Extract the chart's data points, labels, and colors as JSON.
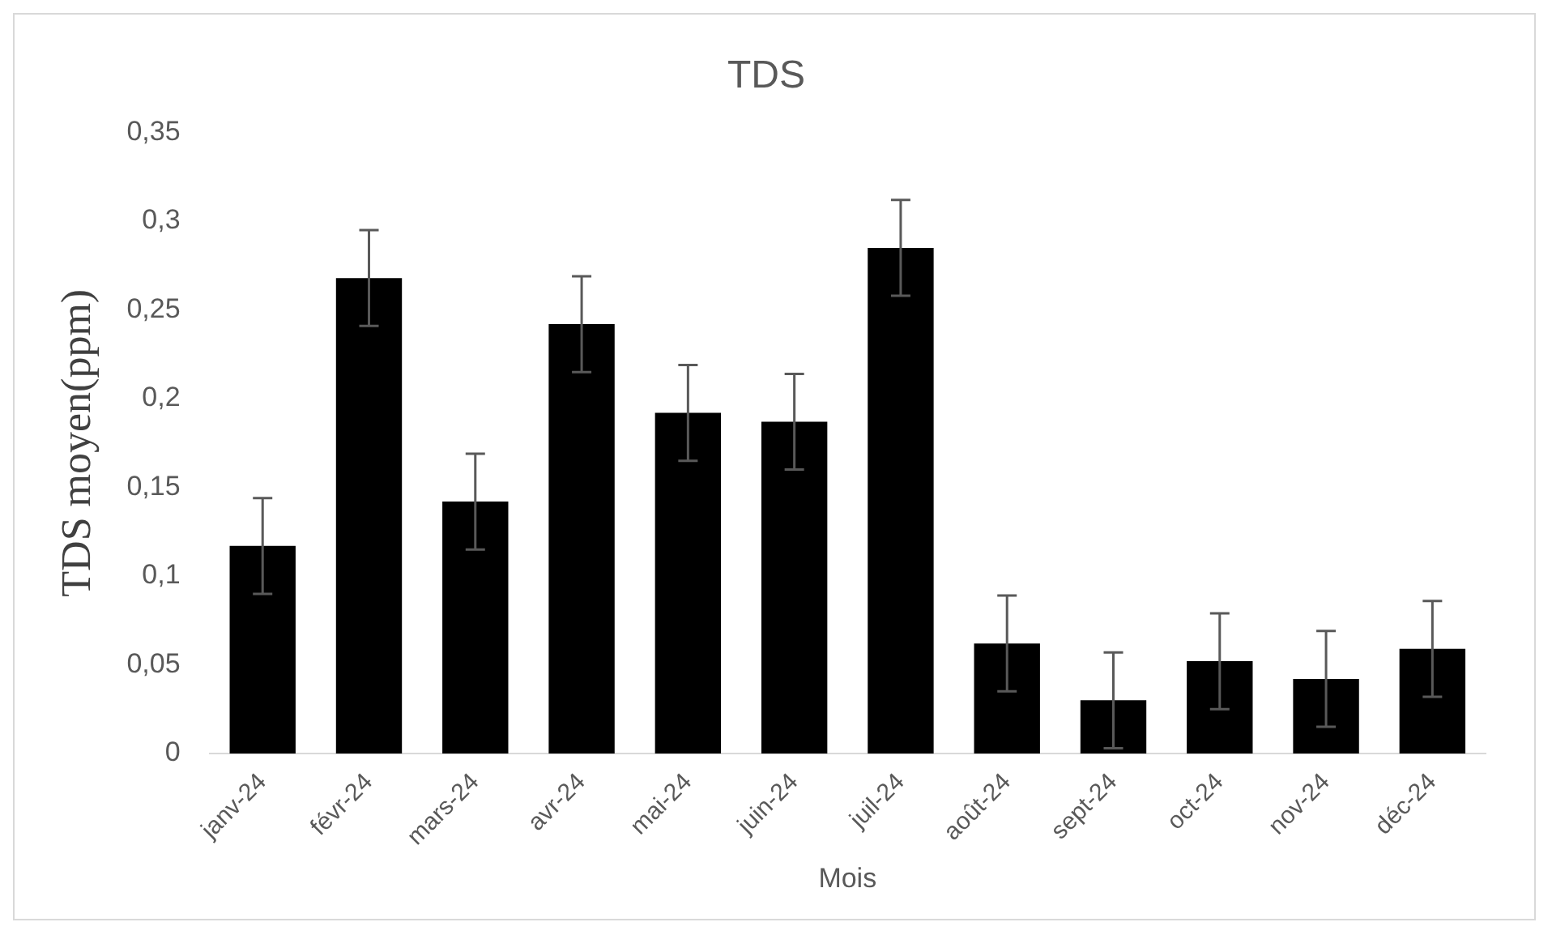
{
  "chart_data": {
    "type": "bar",
    "title": "TDS",
    "xlabel": "Mois",
    "ylabel": "TDS moyen(ppm)",
    "categories": [
      "janv-24",
      "févr-24",
      "mars-24",
      "avr-24",
      "mai-24",
      "juin-24",
      "juil-24",
      "août-24",
      "sept-24",
      "oct-24",
      "nov-24",
      "déc-24"
    ],
    "series": [
      {
        "color": "#000000",
        "values": [
          0.117,
          0.268,
          0.142,
          0.242,
          0.192,
          0.187,
          0.285,
          0.062,
          0.03,
          0.052,
          0.042,
          0.059
        ],
        "errors": [
          0.027,
          0.027,
          0.027,
          0.027,
          0.027,
          0.027,
          0.027,
          0.027,
          0.027,
          0.027,
          0.027,
          0.027
        ]
      }
    ],
    "ylim": [
      0,
      0.35
    ],
    "yticks": [
      {
        "value": 0,
        "label": "0"
      },
      {
        "value": 0.05,
        "label": "0,05"
      },
      {
        "value": 0.1,
        "label": "0,1"
      },
      {
        "value": 0.15,
        "label": "0,15"
      },
      {
        "value": 0.2,
        "label": "0,2"
      },
      {
        "value": 0.25,
        "label": "0,25"
      },
      {
        "value": 0.3,
        "label": "0,3"
      },
      {
        "value": 0.35,
        "label": "0,35"
      }
    ],
    "grid": false,
    "legend": false
  }
}
